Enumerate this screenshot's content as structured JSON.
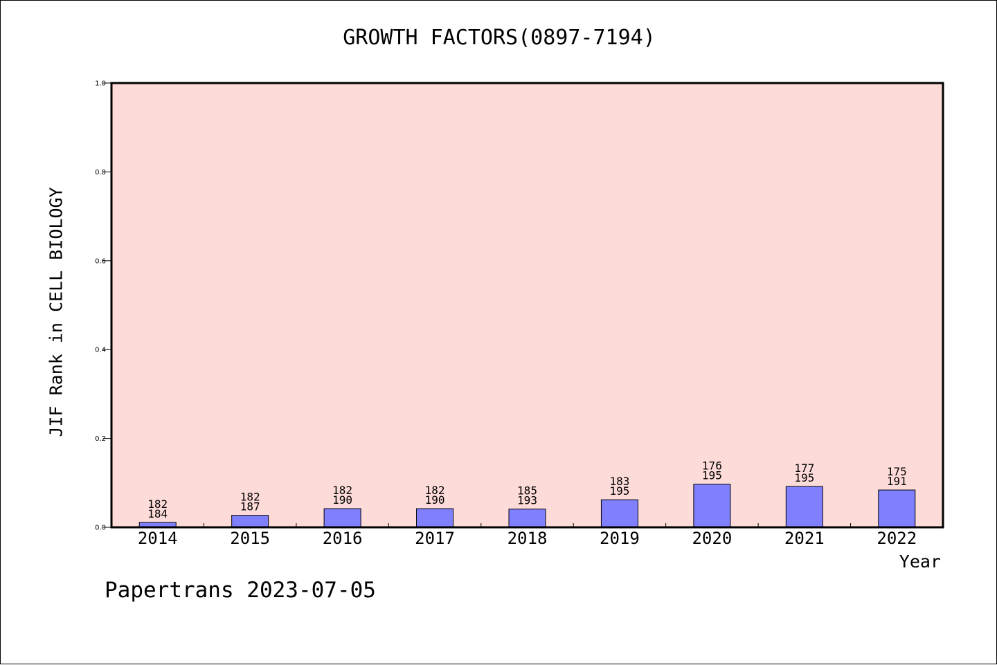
{
  "title": "GROWTH FACTORS(0897-7194)",
  "footer": "Papertrans 2023-07-05",
  "colors": {
    "plot_background": "#fddbd8",
    "bar_fill": "#8080ff",
    "axis": "#000000"
  },
  "chart_data": {
    "type": "bar",
    "title": "GROWTH FACTORS(0897-7194)",
    "xlabel": "Year",
    "ylabel": "JIF Rank in CELL BIOLOGY",
    "ylim": [
      0,
      1.0
    ],
    "yticks": [
      "0.0",
      "0.2",
      "0.4",
      "0.6",
      "0.8",
      "1.0"
    ],
    "grid": false,
    "categories": [
      "2014",
      "2015",
      "2016",
      "2017",
      "2018",
      "2019",
      "2020",
      "2021",
      "2022"
    ],
    "values": [
      0.011,
      0.027,
      0.042,
      0.042,
      0.041,
      0.062,
      0.097,
      0.092,
      0.084
    ],
    "ranks": [
      "182",
      "182",
      "182",
      "182",
      "185",
      "183",
      "176",
      "177",
      "175"
    ],
    "totals": [
      "184",
      "187",
      "190",
      "190",
      "193",
      "195",
      "195",
      "195",
      "191"
    ]
  }
}
